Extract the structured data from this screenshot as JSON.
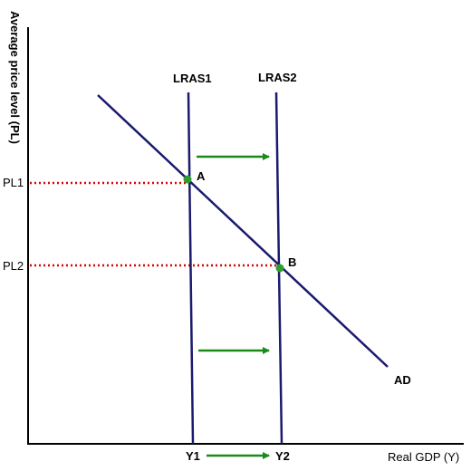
{
  "diagram": {
    "y_axis_label": "Average price level (PL)",
    "x_axis_label": "Real GDP (Y)",
    "price_levels": [
      "PL1",
      "PL2"
    ],
    "outputs": [
      "Y1",
      "Y2"
    ],
    "curves": {
      "lras1": "LRAS1",
      "lras2": "LRAS2",
      "ad": "AD"
    },
    "points": [
      "A",
      "B"
    ],
    "colors": {
      "curve": "#1a1a6e",
      "guide": "#e00000",
      "arrow": "#1a8a1a",
      "point": "#2e9e2e",
      "axis": "#000000"
    }
  }
}
